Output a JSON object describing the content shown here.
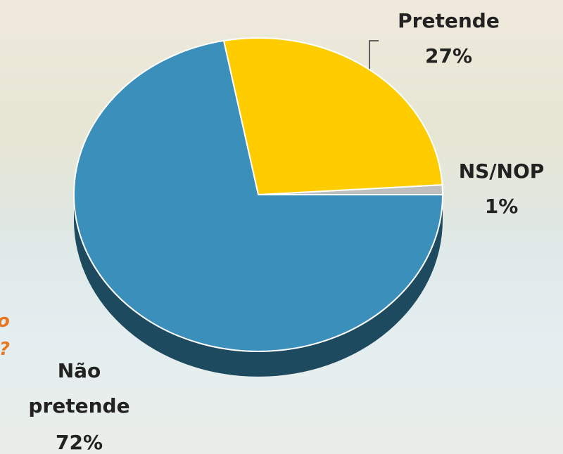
{
  "chart_data": {
    "type": "pie",
    "categories": [
      "NS/NOP",
      "Pretende",
      "Não pretende"
    ],
    "values": [
      1,
      27,
      72
    ],
    "value_labels": [
      "1%",
      "27%",
      "72%"
    ],
    "colors": [
      "#bfbfbf",
      "#ffcc00",
      "#3a8fbb"
    ],
    "annotations": [
      "o",
      "r?"
    ]
  }
}
